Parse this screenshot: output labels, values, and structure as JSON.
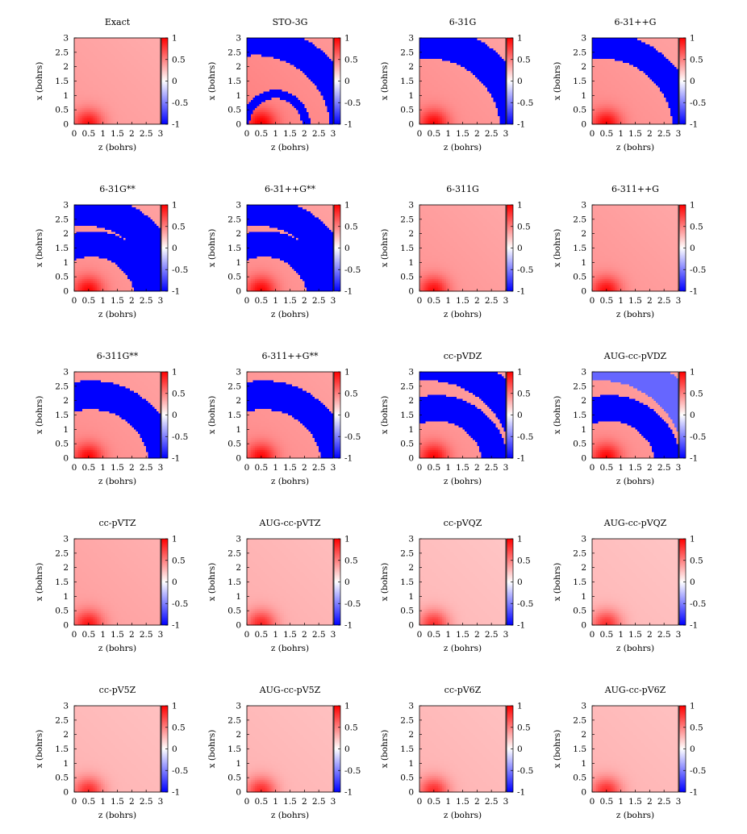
{
  "figure": {
    "cbar_gradient": {
      "colors": [
        "#0000ff",
        "#ffffff",
        "#ff0000"
      ]
    }
  },
  "chart_data": [
    {
      "type": "heatmap",
      "title": "Exact",
      "xlabel": "z (bohrs)",
      "ylabel": "x (bohrs)",
      "xlim": [
        0,
        3
      ],
      "ylim": [
        0,
        3
      ],
      "zlim": [
        -1,
        1
      ],
      "x_ticks": [
        "0",
        "0.5",
        "1",
        "1.5",
        "2",
        "2.5",
        "3"
      ],
      "y_ticks": [
        "0",
        "0.5",
        "1",
        "1.5",
        "2",
        "2.5",
        "3"
      ],
      "colorbar_ticks": [
        "1",
        "0.5",
        "0",
        "-0.5",
        "-1"
      ],
      "base": 0.4,
      "near": 0.55,
      "bands": []
    },
    {
      "type": "heatmap",
      "title": "STO-3G",
      "xlabel": "z (bohrs)",
      "ylabel": "x (bohrs)",
      "xlim": [
        0,
        3
      ],
      "ylim": [
        0,
        3
      ],
      "zlim": [
        -1,
        1
      ],
      "x_ticks": [
        "0",
        "0.5",
        "1",
        "1.5",
        "2",
        "2.5",
        "3"
      ],
      "y_ticks": [
        "0",
        "0.5",
        "1",
        "1.5",
        "2",
        "2.5",
        "3"
      ],
      "colorbar_ticks": [
        "1",
        "0.5",
        "0",
        "-0.5",
        "-1"
      ],
      "base": 0.5,
      "near": 0.55,
      "bands": [
        {
          "cz": 0.3,
          "cx": -0.2,
          "r1": 2.6,
          "r2": 3.6,
          "value": -1
        },
        {
          "cz": 1.0,
          "cx": 0.0,
          "r1": 0.9,
          "r2": 1.2,
          "value": -1
        }
      ]
    },
    {
      "type": "heatmap",
      "title": "6-31G",
      "xlabel": "z (bohrs)",
      "ylabel": "x (bohrs)",
      "xlim": [
        0,
        3
      ],
      "ylim": [
        0,
        3
      ],
      "zlim": [
        -1,
        1
      ],
      "x_ticks": [
        "0",
        "0.5",
        "1",
        "1.5",
        "2",
        "2.5",
        "3"
      ],
      "y_ticks": [
        "0",
        "0.5",
        "1",
        "1.5",
        "2",
        "2.5",
        "3"
      ],
      "colorbar_ticks": [
        "1",
        "0.5",
        "0",
        "-0.5",
        "-1"
      ],
      "base": 0.45,
      "near": 0.55,
      "bands": [
        {
          "cz": 0.3,
          "cx": -0.2,
          "r1": 2.5,
          "r2": 3.6,
          "value": -1
        }
      ]
    },
    {
      "type": "heatmap",
      "title": "6-31++G",
      "xlabel": "z (bohrs)",
      "ylabel": "x (bohrs)",
      "xlim": [
        0,
        3
      ],
      "ylim": [
        0,
        3
      ],
      "zlim": [
        -1,
        1
      ],
      "x_ticks": [
        "0",
        "0.5",
        "1",
        "1.5",
        "2",
        "2.5",
        "3"
      ],
      "y_ticks": [
        "0",
        "0.5",
        "1",
        "1.5",
        "2",
        "2.5",
        "3"
      ],
      "colorbar_ticks": [
        "1",
        "0.5",
        "0",
        "-0.5",
        "-1"
      ],
      "base": 0.45,
      "near": 0.55,
      "bands": [
        {
          "cz": 0.3,
          "cx": -0.2,
          "r1": 2.5,
          "r2": 3.4,
          "value": -1
        }
      ]
    },
    {
      "type": "heatmap",
      "title": "6-31G**",
      "xlabel": "z (bohrs)",
      "ylabel": "x (bohrs)",
      "xlim": [
        0,
        3
      ],
      "ylim": [
        0,
        3
      ],
      "zlim": [
        -1,
        1
      ],
      "x_ticks": [
        "0",
        "0.5",
        "1",
        "1.5",
        "2",
        "2.5",
        "3"
      ],
      "y_ticks": [
        "0",
        "0.5",
        "1",
        "1.5",
        "2",
        "2.5",
        "3"
      ],
      "colorbar_ticks": [
        "1",
        "0.5",
        "0",
        "-0.5",
        "-1"
      ],
      "base": 0.45,
      "near": 0.55,
      "bands": [
        {
          "cz": 0.3,
          "cx": -0.2,
          "r1": 2.5,
          "r2": 3.6,
          "value": -1
        },
        {
          "cz": 0.6,
          "cx": -0.3,
          "r1": 1.5,
          "r2": 2.4,
          "value": -1
        }
      ]
    },
    {
      "type": "heatmap",
      "title": "6-31++G**",
      "xlabel": "z (bohrs)",
      "ylabel": "x (bohrs)",
      "xlim": [
        0,
        3
      ],
      "ylim": [
        0,
        3
      ],
      "zlim": [
        -1,
        1
      ],
      "x_ticks": [
        "0",
        "0.5",
        "1",
        "1.5",
        "2",
        "2.5",
        "3"
      ],
      "y_ticks": [
        "0",
        "0.5",
        "1",
        "1.5",
        "2",
        "2.5",
        "3"
      ],
      "colorbar_ticks": [
        "1",
        "0.5",
        "0",
        "-0.5",
        "-1"
      ],
      "base": 0.45,
      "near": 0.55,
      "bands": [
        {
          "cz": 0.3,
          "cx": -0.2,
          "r1": 2.5,
          "r2": 3.5,
          "value": -1
        },
        {
          "cz": 0.6,
          "cx": -0.3,
          "r1": 1.5,
          "r2": 2.4,
          "value": -1
        }
      ]
    },
    {
      "type": "heatmap",
      "title": "6-311G",
      "xlabel": "z (bohrs)",
      "ylabel": "x (bohrs)",
      "xlim": [
        0,
        3
      ],
      "ylim": [
        0,
        3
      ],
      "zlim": [
        -1,
        1
      ],
      "x_ticks": [
        "0",
        "0.5",
        "1",
        "1.5",
        "2",
        "2.5",
        "3"
      ],
      "y_ticks": [
        "0",
        "0.5",
        "1",
        "1.5",
        "2",
        "2.5",
        "3"
      ],
      "colorbar_ticks": [
        "1",
        "0.5",
        "0",
        "-0.5",
        "-1"
      ],
      "base": 0.42,
      "near": 0.55,
      "bands": []
    },
    {
      "type": "heatmap",
      "title": "6-311++G",
      "xlabel": "z (bohrs)",
      "ylabel": "x (bohrs)",
      "xlim": [
        0,
        3
      ],
      "ylim": [
        0,
        3
      ],
      "zlim": [
        -1,
        1
      ],
      "x_ticks": [
        "0",
        "0.5",
        "1",
        "1.5",
        "2",
        "2.5",
        "3"
      ],
      "y_ticks": [
        "0",
        "0.5",
        "1",
        "1.5",
        "2",
        "2.5",
        "3"
      ],
      "colorbar_ticks": [
        "1",
        "0.5",
        "0",
        "-0.5",
        "-1"
      ],
      "base": 0.42,
      "near": 0.55,
      "bands": []
    },
    {
      "type": "heatmap",
      "title": "6-311G**",
      "xlabel": "z (bohrs)",
      "ylabel": "x (bohrs)",
      "xlim": [
        0,
        3
      ],
      "ylim": [
        0,
        3
      ],
      "zlim": [
        -1,
        1
      ],
      "x_ticks": [
        "0",
        "0.5",
        "1",
        "1.5",
        "2",
        "2.5",
        "3"
      ],
      "y_ticks": [
        "0",
        "0.5",
        "1",
        "1.5",
        "2",
        "2.5",
        "3"
      ],
      "colorbar_ticks": [
        "1",
        "0.5",
        "0",
        "-0.5",
        "-1"
      ],
      "base": 0.45,
      "near": 0.55,
      "bands": [
        {
          "cz": 0.6,
          "cx": -0.3,
          "r1": 2.0,
          "r2": 3.0,
          "value": -1
        }
      ]
    },
    {
      "type": "heatmap",
      "title": "6-311++G**",
      "xlabel": "z (bohrs)",
      "ylabel": "x (bohrs)",
      "xlim": [
        0,
        3
      ],
      "ylim": [
        0,
        3
      ],
      "zlim": [
        -1,
        1
      ],
      "x_ticks": [
        "0",
        "0.5",
        "1",
        "1.5",
        "2",
        "2.5",
        "3"
      ],
      "y_ticks": [
        "0",
        "0.5",
        "1",
        "1.5",
        "2",
        "2.5",
        "3"
      ],
      "colorbar_ticks": [
        "1",
        "0.5",
        "0",
        "-0.5",
        "-1"
      ],
      "base": 0.45,
      "near": 0.55,
      "bands": [
        {
          "cz": 0.6,
          "cx": -0.3,
          "r1": 2.0,
          "r2": 3.0,
          "value": -1
        }
      ]
    },
    {
      "type": "heatmap",
      "title": "cc-pVDZ",
      "xlabel": "z (bohrs)",
      "ylabel": "x (bohrs)",
      "xlim": [
        0,
        3
      ],
      "ylim": [
        0,
        3
      ],
      "zlim": [
        -1,
        1
      ],
      "x_ticks": [
        "0",
        "0.5",
        "1",
        "1.5",
        "2",
        "2.5",
        "3"
      ],
      "y_ticks": [
        "0",
        "0.5",
        "1",
        "1.5",
        "2",
        "2.5",
        "3"
      ],
      "colorbar_ticks": [
        "1",
        "0.5",
        "0",
        "-0.5",
        "-1"
      ],
      "base": 0.45,
      "near": 0.55,
      "bands": [
        {
          "cz": 0.3,
          "cx": -0.2,
          "r1": 2.9,
          "r2": 4.0,
          "value": -1
        },
        {
          "cz": 0.6,
          "cx": -0.3,
          "r1": 1.6,
          "r2": 2.5,
          "value": -1
        }
      ]
    },
    {
      "type": "heatmap",
      "title": "AUG-cc-pVDZ",
      "xlabel": "z (bohrs)",
      "ylabel": "x (bohrs)",
      "xlim": [
        0,
        3
      ],
      "ylim": [
        0,
        3
      ],
      "zlim": [
        -1,
        1
      ],
      "x_ticks": [
        "0",
        "0.5",
        "1",
        "1.5",
        "2",
        "2.5",
        "3"
      ],
      "y_ticks": [
        "0",
        "0.5",
        "1",
        "1.5",
        "2",
        "2.5",
        "3"
      ],
      "colorbar_ticks": [
        "1",
        "0.5",
        "0",
        "-0.5",
        "-1"
      ],
      "base": 0.45,
      "near": 0.55,
      "bands": [
        {
          "cz": 0.3,
          "cx": -0.2,
          "r1": 2.9,
          "r2": 4.0,
          "value": -0.6
        },
        {
          "cz": 0.6,
          "cx": -0.3,
          "r1": 1.6,
          "r2": 2.5,
          "value": -1
        }
      ]
    },
    {
      "type": "heatmap",
      "title": "cc-pVTZ",
      "xlabel": "z (bohrs)",
      "ylabel": "x (bohrs)",
      "xlim": [
        0,
        3
      ],
      "ylim": [
        0,
        3
      ],
      "zlim": [
        -1,
        1
      ],
      "x_ticks": [
        "0",
        "0.5",
        "1",
        "1.5",
        "2",
        "2.5",
        "3"
      ],
      "y_ticks": [
        "0",
        "0.5",
        "1",
        "1.5",
        "2",
        "2.5",
        "3"
      ],
      "colorbar_ticks": [
        "1",
        "0.5",
        "0",
        "-0.5",
        "-1"
      ],
      "base": 0.38,
      "near": 0.55,
      "bands": []
    },
    {
      "type": "heatmap",
      "title": "AUG-cc-pVTZ",
      "xlabel": "z (bohrs)",
      "ylabel": "x (bohrs)",
      "xlim": [
        0,
        3
      ],
      "ylim": [
        0,
        3
      ],
      "zlim": [
        -1,
        1
      ],
      "x_ticks": [
        "0",
        "0.5",
        "1",
        "1.5",
        "2",
        "2.5",
        "3"
      ],
      "y_ticks": [
        "0",
        "0.5",
        "1",
        "1.5",
        "2",
        "2.5",
        "3"
      ],
      "colorbar_ticks": [
        "1",
        "0.5",
        "0",
        "-0.5",
        "-1"
      ],
      "base": 0.32,
      "near": 0.55,
      "bands": []
    },
    {
      "type": "heatmap",
      "title": "cc-pVQZ",
      "xlabel": "z (bohrs)",
      "ylabel": "x (bohrs)",
      "xlim": [
        0,
        3
      ],
      "ylim": [
        0,
        3
      ],
      "zlim": [
        -1,
        1
      ],
      "x_ticks": [
        "0",
        "0.5",
        "1",
        "1.5",
        "2",
        "2.5",
        "3"
      ],
      "y_ticks": [
        "0",
        "0.5",
        "1",
        "1.5",
        "2",
        "2.5",
        "3"
      ],
      "colorbar_ticks": [
        "1",
        "0.5",
        "0",
        "-0.5",
        "-1"
      ],
      "base": 0.28,
      "near": 0.55,
      "bands": []
    },
    {
      "type": "heatmap",
      "title": "AUG-cc-pVQZ",
      "xlabel": "z (bohrs)",
      "ylabel": "x (bohrs)",
      "xlim": [
        0,
        3
      ],
      "ylim": [
        0,
        3
      ],
      "zlim": [
        -1,
        1
      ],
      "x_ticks": [
        "0",
        "0.5",
        "1",
        "1.5",
        "2",
        "2.5",
        "3"
      ],
      "y_ticks": [
        "0",
        "0.5",
        "1",
        "1.5",
        "2",
        "2.5",
        "3"
      ],
      "colorbar_ticks": [
        "1",
        "0.5",
        "0",
        "-0.5",
        "-1"
      ],
      "base": 0.28,
      "near": 0.55,
      "bands": []
    },
    {
      "type": "heatmap",
      "title": "cc-pV5Z",
      "xlabel": "z (bohrs)",
      "ylabel": "x (bohrs)",
      "xlim": [
        0,
        3
      ],
      "ylim": [
        0,
        3
      ],
      "zlim": [
        -1,
        1
      ],
      "x_ticks": [
        "0",
        "0.5",
        "1",
        "1.5",
        "2",
        "2.5",
        "3"
      ],
      "y_ticks": [
        "0",
        "0.5",
        "1",
        "1.5",
        "2",
        "2.5",
        "3"
      ],
      "colorbar_ticks": [
        "1",
        "0.5",
        "0",
        "-0.5",
        "-1"
      ],
      "base": 0.3,
      "near": 0.55,
      "bands": []
    },
    {
      "type": "heatmap",
      "title": "AUG-cc-pV5Z",
      "xlabel": "z (bohrs)",
      "ylabel": "x (bohrs)",
      "xlim": [
        0,
        3
      ],
      "ylim": [
        0,
        3
      ],
      "zlim": [
        -1,
        1
      ],
      "x_ticks": [
        "0",
        "0.5",
        "1",
        "1.5",
        "2",
        "2.5",
        "3"
      ],
      "y_ticks": [
        "0",
        "0.5",
        "1",
        "1.5",
        "2",
        "2.5",
        "3"
      ],
      "colorbar_ticks": [
        "1",
        "0.5",
        "0",
        "-0.5",
        "-1"
      ],
      "base": 0.3,
      "near": 0.55,
      "bands": []
    },
    {
      "type": "heatmap",
      "title": "cc-pV6Z",
      "xlabel": "z (bohrs)",
      "ylabel": "x (bohrs)",
      "xlim": [
        0,
        3
      ],
      "ylim": [
        0,
        3
      ],
      "zlim": [
        -1,
        1
      ],
      "x_ticks": [
        "0",
        "0.5",
        "1",
        "1.5",
        "2",
        "2.5",
        "3"
      ],
      "y_ticks": [
        "0",
        "0.5",
        "1",
        "1.5",
        "2",
        "2.5",
        "3"
      ],
      "colorbar_ticks": [
        "1",
        "0.5",
        "0",
        "-0.5",
        "-1"
      ],
      "base": 0.3,
      "near": 0.55,
      "bands": []
    },
    {
      "type": "heatmap",
      "title": "AUG-cc-pV6Z",
      "xlabel": "z (bohrs)",
      "ylabel": "x (bohrs)",
      "xlim": [
        0,
        3
      ],
      "ylim": [
        0,
        3
      ],
      "zlim": [
        -1,
        1
      ],
      "x_ticks": [
        "0",
        "0.5",
        "1",
        "1.5",
        "2",
        "2.5",
        "3"
      ],
      "y_ticks": [
        "0",
        "0.5",
        "1",
        "1.5",
        "2",
        "2.5",
        "3"
      ],
      "colorbar_ticks": [
        "1",
        "0.5",
        "0",
        "-0.5",
        "-1"
      ],
      "base": 0.3,
      "near": 0.55,
      "bands": []
    }
  ]
}
